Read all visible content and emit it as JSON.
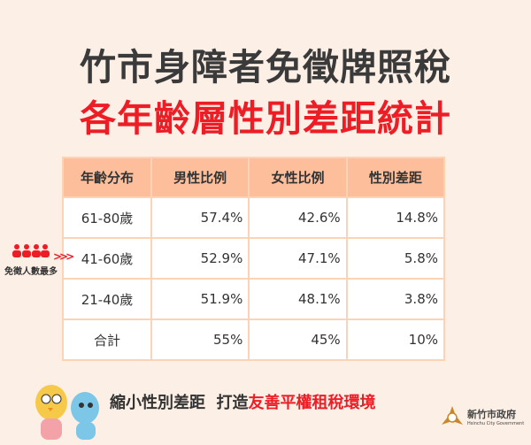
{
  "title": {
    "line1": "竹市身障者免徵牌照稅",
    "line2": "各年齡層性別差距統計"
  },
  "table": {
    "headers": [
      "年齡分布",
      "男性比例",
      "女性比例",
      "性別差距"
    ],
    "rows": [
      [
        "61-80歲",
        "57.4%",
        "42.6%",
        "14.8%"
      ],
      [
        "41-60歲",
        "52.9%",
        "47.1%",
        "5.8%"
      ],
      [
        "21-40歲",
        "51.9%",
        "48.1%",
        "3.8%"
      ],
      [
        "合計",
        "55%",
        "45%",
        "10%"
      ]
    ]
  },
  "badge": {
    "icon": "people-group-icon",
    "label": "免徵人數最多",
    "arrows": ">>>"
  },
  "slogan": {
    "part1": "縮小性別差距  打造",
    "part2": "友善平權租稅環境"
  },
  "logo": {
    "name": "新竹市政府",
    "english": "Hsinchu City Government"
  },
  "colors": {
    "background": "#fcefe6",
    "header": "#fdbf9b",
    "accent": "#ee1c25"
  }
}
